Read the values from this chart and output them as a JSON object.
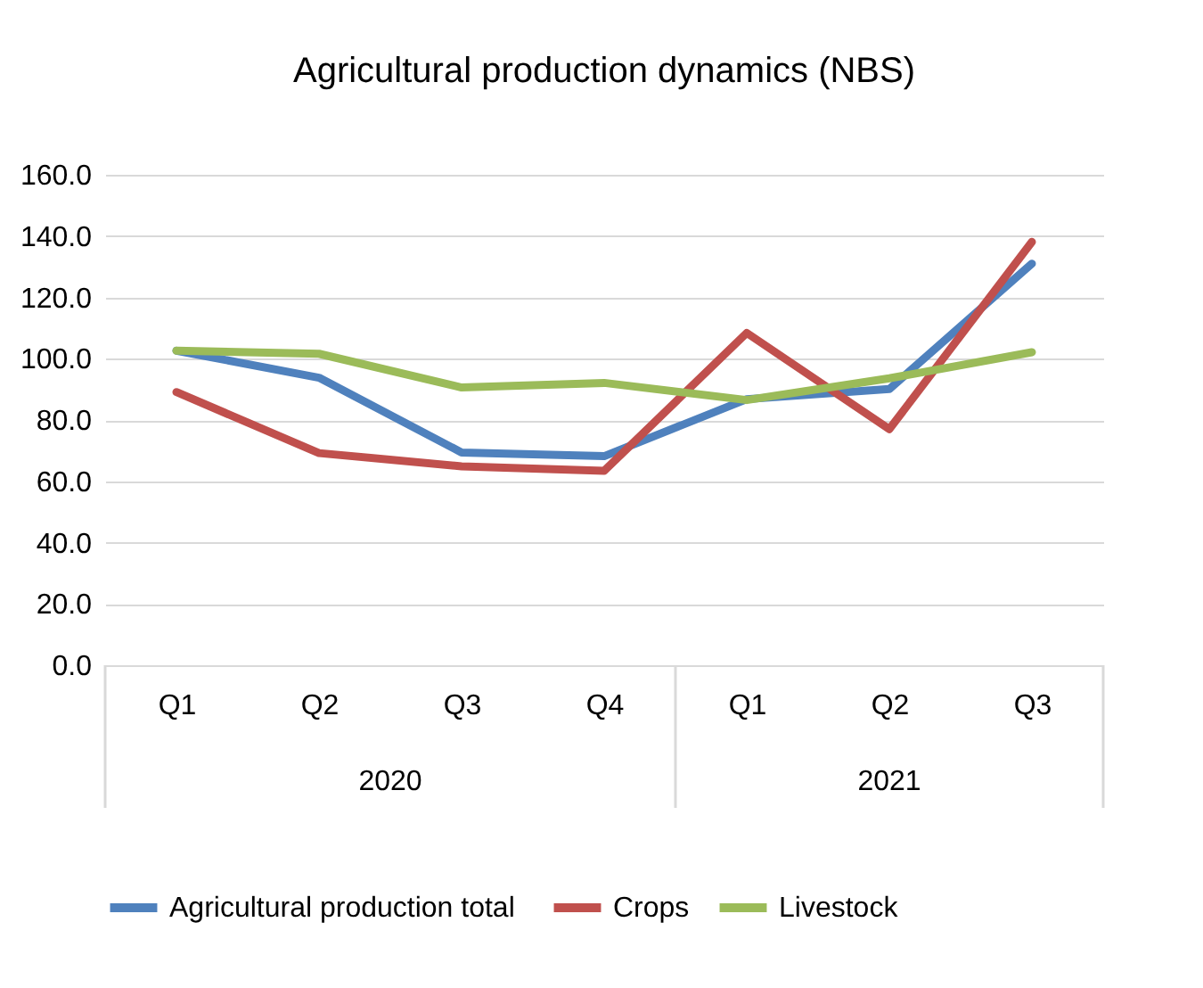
{
  "chart_data": {
    "type": "line",
    "title": "Agricultural production dynamics (NBS)",
    "categories": [
      "Q1",
      "Q2",
      "Q3",
      "Q4",
      "Q1",
      "Q2",
      "Q3"
    ],
    "annotations": [
      "2020",
      "2021"
    ],
    "series": [
      {
        "name": "Agricultural production  total",
        "color": "#4f81bd",
        "values": [
          102.6,
          93.8,
          69.4,
          68.2,
          86.8,
          90.1,
          131
        ]
      },
      {
        "name": "Crops",
        "color": "#c0504d",
        "values": [
          89.1,
          69.2,
          64.9,
          63.4,
          108.4,
          77,
          138.1
        ]
      },
      {
        "name": "Livestock",
        "color": "#9bbb59",
        "values": [
          102.6,
          101.6,
          90.6,
          92.1,
          86.5,
          93.6,
          102.1
        ]
      }
    ],
    "ylim": [
      0,
      160
    ],
    "yticks": [
      {
        "value": 0,
        "label": "0.0"
      },
      {
        "value": 20,
        "label": "20.0"
      },
      {
        "value": 40,
        "label": "40.0"
      },
      {
        "value": 60,
        "label": "60.0"
      },
      {
        "value": 80,
        "label": "80.0"
      },
      {
        "value": 100,
        "label": "100.0"
      },
      {
        "value": 120,
        "label": "120.0"
      },
      {
        "value": 140,
        "label": "140.0"
      },
      {
        "value": 160,
        "label": "160.0"
      }
    ],
    "grid": "y",
    "legend": "bottom",
    "marker": "none",
    "line_style": "solid"
  }
}
